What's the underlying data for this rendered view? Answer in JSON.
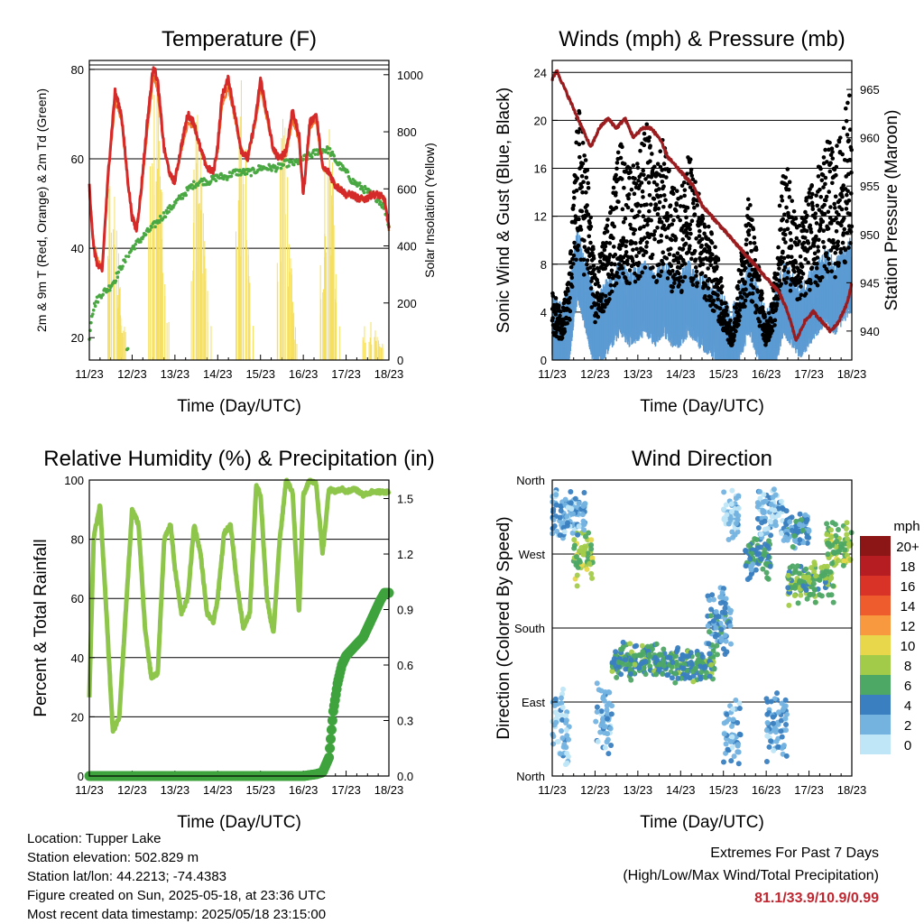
{
  "x_ticks": [
    "11/23",
    "12/23",
    "13/23",
    "14/23",
    "15/23",
    "16/23",
    "17/23",
    "18/23"
  ],
  "x_label": "Time (Day/UTC)",
  "footer": {
    "location": "Location: Tupper Lake",
    "elevation": "Station elevation: 502.829 m",
    "latlon": "Station lat/lon: 44.2213; -74.4383",
    "created": "Figure created on Sun, 2025-05-18, at 23:36 UTC",
    "recent": "Most recent data timestamp: 2025/05/18 23:15:00",
    "extremes_title": "Extremes For Past 7 Days",
    "extremes_sub": "(High/Low/Max Wind/Total Precipitation)",
    "extremes_values": "81.1/33.9/10.9/0.99"
  },
  "colorbar": {
    "title": "mph",
    "labels": [
      "20+",
      "18",
      "16",
      "14",
      "12",
      "10",
      "8",
      "6",
      "4",
      "2",
      "0"
    ],
    "colors": [
      "#8c1515",
      "#b61d22",
      "#d93327",
      "#ee5b2c",
      "#f89940",
      "#e8d74a",
      "#a3cb4a",
      "#4ea865",
      "#3a7fc0",
      "#74b3e0",
      "#bfe6f7"
    ]
  },
  "chart_data": [
    {
      "id": "temperature",
      "type": "line",
      "title": "Temperature (F)",
      "xlabel": "Time (Day/UTC)",
      "ylabel": "2m & 9m T (Red, Orange) & 2m Td (Green)",
      "ylabel_right": "Solar Insolation (Yellow)",
      "xlim": [
        11,
        18
      ],
      "ylim": [
        15,
        82
      ],
      "yticks": [
        20,
        40,
        60,
        80
      ],
      "ylim_right": [
        0,
        1050
      ],
      "yticks_right": [
        0,
        200,
        400,
        600,
        800,
        1000
      ],
      "gridlines": [
        40,
        60,
        80
      ],
      "colors": {
        "t2m": "#d42a2a",
        "t9m": "#f0772e",
        "td": "#4aa843",
        "solar": "#f6df5c"
      },
      "series": [
        {
          "key": "t2m",
          "x": [
            11.0,
            11.1,
            11.2,
            11.3,
            11.45,
            11.6,
            11.75,
            11.9,
            12.0,
            12.1,
            12.2,
            12.35,
            12.5,
            12.6,
            12.75,
            12.9,
            13.0,
            13.15,
            13.3,
            13.45,
            13.6,
            13.75,
            13.9,
            14.0,
            14.1,
            14.25,
            14.4,
            14.55,
            14.7,
            14.9,
            15.0,
            15.15,
            15.3,
            15.45,
            15.6,
            15.75,
            15.9,
            16.0,
            16.15,
            16.3,
            16.45,
            16.6,
            16.75,
            16.9,
            17.0,
            17.15,
            17.3,
            17.45,
            17.6,
            17.75,
            17.9,
            18.0
          ],
          "y": [
            54,
            40,
            36,
            35,
            58,
            75,
            70,
            55,
            47,
            44,
            52,
            68,
            81,
            77,
            62,
            56,
            55,
            63,
            70,
            68,
            62,
            58,
            57,
            63,
            74,
            78,
            70,
            62,
            60,
            70,
            78,
            70,
            62,
            60,
            62,
            71,
            65,
            52,
            68,
            70,
            58,
            57,
            54,
            53,
            52,
            52,
            51,
            51,
            52,
            52,
            51,
            44
          ]
        },
        {
          "key": "t9m",
          "x": [
            11.0,
            11.1,
            11.2,
            11.3,
            11.45,
            11.6,
            11.75,
            11.9,
            12.0,
            12.1,
            12.2,
            12.35,
            12.5,
            12.6,
            12.75,
            12.9,
            13.0,
            13.15,
            13.3,
            13.45,
            13.6,
            13.75,
            13.9,
            14.0,
            14.1,
            14.25,
            14.4,
            14.55,
            14.7,
            14.9,
            15.0,
            15.15,
            15.3,
            15.45,
            15.6,
            15.75,
            15.9,
            16.0,
            16.15,
            16.3,
            16.45,
            16.6,
            16.75,
            16.9,
            17.0,
            17.15,
            17.3,
            17.45,
            17.6,
            17.75,
            17.9,
            18.0
          ],
          "y": [
            53,
            41,
            37,
            36,
            57,
            73,
            69,
            55,
            47,
            45,
            51,
            66,
            79,
            75,
            62,
            56,
            55,
            62,
            68,
            67,
            62,
            58,
            57,
            62,
            72,
            76,
            69,
            62,
            60,
            69,
            76,
            69,
            62,
            60,
            61,
            69,
            64,
            52,
            67,
            69,
            58,
            57,
            54,
            53,
            52,
            52,
            51,
            51,
            52,
            52,
            51,
            44
          ]
        },
        {
          "key": "td",
          "x": [
            11.0,
            11.05,
            11.15,
            11.3,
            11.45,
            11.6,
            11.75,
            11.9,
            12.0,
            12.2,
            12.4,
            12.6,
            12.8,
            13.0,
            13.2,
            13.4,
            13.6,
            13.8,
            14.0,
            14.2,
            14.4,
            14.6,
            14.8,
            15.0,
            15.2,
            15.4,
            15.6,
            15.8,
            16.0,
            16.2,
            16.4,
            16.6,
            16.8,
            17.0,
            17.15,
            17.3,
            17.45,
            17.6,
            17.75,
            17.9,
            18.0
          ],
          "y": [
            20,
            25,
            28,
            30,
            31,
            33,
            36,
            38,
            40,
            42,
            44,
            46,
            48,
            50,
            52,
            54,
            55,
            55,
            56,
            56,
            57,
            57,
            57,
            58,
            58,
            58,
            59,
            59,
            60,
            61,
            62,
            62,
            59,
            57,
            55,
            54,
            53,
            52,
            51,
            49,
            45
          ]
        },
        {
          "key": "solar",
          "x": [
            11.4,
            11.5,
            11.6,
            11.7,
            11.8,
            12.4,
            12.5,
            12.6,
            12.7,
            12.8,
            13.4,
            13.5,
            13.6,
            13.7,
            13.8,
            14.4,
            14.5,
            14.6,
            14.7,
            14.8,
            15.4,
            15.5,
            15.6,
            15.7,
            15.8,
            16.4,
            16.5,
            16.6,
            16.7,
            16.8,
            17.4,
            17.5,
            17.6,
            17.7,
            17.8
          ],
          "y": [
            400,
            700,
            550,
            300,
            100,
            550,
            990,
            880,
            600,
            150,
            450,
            900,
            750,
            380,
            120,
            300,
            850,
            950,
            500,
            100,
            400,
            800,
            760,
            350,
            120,
            300,
            700,
            950,
            600,
            140,
            80,
            180,
            120,
            90,
            60
          ]
        }
      ]
    },
    {
      "id": "winds",
      "type": "scatter",
      "title": "Winds (mph) & Pressure (mb)",
      "xlabel": "Time (Day/UTC)",
      "ylabel": "Sonic Wind & Gust (Blue, Black)",
      "ylabel_right": "Station Pressure (Maroon)",
      "xlim": [
        11,
        18
      ],
      "ylim": [
        0,
        25
      ],
      "yticks": [
        0,
        4,
        8,
        12,
        16,
        20,
        24
      ],
      "ylim_right": [
        937,
        968
      ],
      "yticks_right": [
        940,
        945,
        950,
        955,
        960,
        965
      ],
      "gridlines": [
        4,
        8,
        12,
        16,
        20,
        24
      ],
      "colors": {
        "wind": "#5c9bd3",
        "gust": "#000000",
        "pressure": "#9b1c1f"
      },
      "series": [
        {
          "key": "wind_mean",
          "x": [
            11.0,
            11.2,
            11.4,
            11.6,
            11.8,
            12.0,
            12.2,
            12.4,
            12.6,
            12.8,
            13.0,
            13.2,
            13.4,
            13.6,
            13.8,
            14.0,
            14.2,
            14.4,
            14.6,
            14.8,
            15.0,
            15.2,
            15.4,
            15.6,
            15.8,
            16.0,
            16.2,
            16.4,
            16.6,
            16.8,
            17.0,
            17.2,
            17.4,
            17.6,
            17.8,
            18.0
          ],
          "y": [
            2,
            1.5,
            3,
            8,
            5,
            2,
            3,
            4,
            5,
            4,
            4.5,
            5,
            4,
            5,
            4,
            4,
            5,
            4,
            3.5,
            3,
            2,
            1,
            3,
            5,
            3,
            1,
            2,
            5,
            4,
            3,
            4,
            5,
            6,
            5,
            6,
            7
          ]
        },
        {
          "key": "gust_mean",
          "x": [
            11.0,
            11.2,
            11.4,
            11.6,
            11.8,
            12.0,
            12.2,
            12.4,
            12.6,
            12.8,
            13.0,
            13.2,
            13.4,
            13.6,
            13.8,
            14.0,
            14.2,
            14.4,
            14.6,
            14.8,
            15.0,
            15.2,
            15.4,
            15.6,
            15.8,
            16.0,
            16.2,
            16.4,
            16.6,
            16.8,
            17.0,
            17.2,
            17.4,
            17.6,
            17.8,
            18.0
          ],
          "y": [
            4,
            3,
            5,
            15,
            12,
            5,
            7,
            10,
            13,
            11,
            12,
            14,
            11,
            13,
            10,
            10,
            12,
            10,
            8,
            7,
            4,
            2,
            6,
            10,
            6,
            2,
            5,
            12,
            10,
            8,
            10,
            11,
            13,
            12,
            14,
            16
          ]
        },
        {
          "key": "pressure",
          "x": [
            11.0,
            11.1,
            11.3,
            11.5,
            11.7,
            11.9,
            12.1,
            12.3,
            12.5,
            12.7,
            12.9,
            13.1,
            13.3,
            13.5,
            13.7,
            13.9,
            14.1,
            14.3,
            14.5,
            14.7,
            14.9,
            15.1,
            15.3,
            15.5,
            15.7,
            15.9,
            16.1,
            16.3,
            16.5,
            16.7,
            16.9,
            17.1,
            17.3,
            17.5,
            17.7,
            17.9,
            18.0
          ],
          "y": [
            966,
            967,
            965,
            963,
            961,
            959,
            961,
            962,
            961,
            962,
            960,
            961,
            961,
            960,
            958,
            957,
            956,
            955,
            953,
            952,
            951,
            950,
            949,
            948,
            947,
            946,
            945,
            944,
            942,
            939,
            941,
            942,
            941,
            940,
            941,
            943,
            945
          ]
        }
      ]
    },
    {
      "id": "humidity",
      "type": "line",
      "title": "Relative Humidity (%) & Precipitation (in)",
      "xlabel": "Time (Day/UTC)",
      "ylabel": "Percent & Total Rainfall",
      "xlim": [
        11,
        18
      ],
      "ylim": [
        0,
        100
      ],
      "yticks": [
        0,
        20,
        40,
        60,
        80,
        100
      ],
      "ylim_right": [
        0,
        1.6
      ],
      "yticks_right": [
        "0.0",
        "0.3",
        "0.6",
        "0.9",
        "1.2",
        "1.5"
      ],
      "gridlines": [
        20,
        40,
        60,
        80,
        100
      ],
      "colors": {
        "rh": "#8ec64b",
        "precip": "#3fa33d"
      },
      "series": [
        {
          "key": "rh",
          "x": [
            11.0,
            11.1,
            11.25,
            11.4,
            11.55,
            11.7,
            11.85,
            12.0,
            12.15,
            12.3,
            12.45,
            12.6,
            12.75,
            12.9,
            13.0,
            13.15,
            13.3,
            13.45,
            13.6,
            13.75,
            13.9,
            14.0,
            14.15,
            14.3,
            14.45,
            14.6,
            14.75,
            14.9,
            15.0,
            15.15,
            15.3,
            15.45,
            15.6,
            15.75,
            15.9,
            16.0,
            16.15,
            16.3,
            16.45,
            16.6,
            16.75,
            16.9,
            17.0,
            17.2,
            17.4,
            17.6,
            17.8,
            18.0
          ],
          "y": [
            27,
            80,
            92,
            55,
            15,
            20,
            55,
            90,
            85,
            50,
            33,
            35,
            80,
            85,
            70,
            55,
            60,
            85,
            75,
            55,
            52,
            60,
            82,
            85,
            65,
            50,
            55,
            98,
            95,
            60,
            48,
            80,
            100,
            96,
            55,
            95,
            100,
            99,
            75,
            97,
            96,
            97,
            96,
            97,
            95,
            96,
            96,
            96
          ]
        },
        {
          "key": "precip",
          "x": [
            11.0,
            11.5,
            12.0,
            12.5,
            13.0,
            13.5,
            14.0,
            14.5,
            15.0,
            15.5,
            16.0,
            16.3,
            16.45,
            16.6,
            16.7,
            16.8,
            16.9,
            17.0,
            17.2,
            17.4,
            17.6,
            17.8,
            17.9,
            18.0
          ],
          "y": [
            0,
            0,
            0,
            0,
            0,
            0,
            0,
            0,
            0,
            0,
            0,
            0.01,
            0.02,
            0.1,
            0.35,
            0.5,
            0.6,
            0.65,
            0.7,
            0.75,
            0.85,
            0.95,
            0.99,
            0.99
          ]
        }
      ]
    },
    {
      "id": "wind_direction",
      "type": "scatter",
      "title": "Wind Direction",
      "xlabel": "Time (Day/UTC)",
      "ylabel": "Direction (Colored By Speed)",
      "xlim": [
        11,
        18
      ],
      "ylim": [
        0,
        360
      ],
      "ytick_labels": [
        "North",
        "East",
        "South",
        "West",
        "North"
      ],
      "yticks": [
        0,
        90,
        180,
        270,
        360
      ],
      "gridlines": [
        90,
        180,
        270
      ],
      "clusters": [
        {
          "x0": 11.0,
          "x1": 11.3,
          "dir_mean": 315,
          "dir_spread": 35,
          "speed": 2
        },
        {
          "x0": 11.0,
          "x1": 11.4,
          "dir_mean": 60,
          "dir_spread": 55,
          "speed": 1
        },
        {
          "x0": 11.5,
          "x1": 11.95,
          "dir_mean": 270,
          "dir_spread": 40,
          "speed": 7
        },
        {
          "x0": 11.3,
          "x1": 11.8,
          "dir_mean": 320,
          "dir_spread": 30,
          "speed": 2
        },
        {
          "x0": 12.0,
          "x1": 12.4,
          "dir_mean": 70,
          "dir_spread": 50,
          "speed": 2
        },
        {
          "x0": 12.4,
          "x1": 13.5,
          "dir_mean": 140,
          "dir_spread": 25,
          "speed": 5
        },
        {
          "x0": 13.5,
          "x1": 14.8,
          "dir_mean": 135,
          "dir_spread": 25,
          "speed": 5
        },
        {
          "x0": 14.6,
          "x1": 15.2,
          "dir_mean": 190,
          "dir_spread": 45,
          "speed": 3
        },
        {
          "x0": 15.0,
          "x1": 15.4,
          "dir_mean": 320,
          "dir_spread": 35,
          "speed": 1
        },
        {
          "x0": 15.0,
          "x1": 15.4,
          "dir_mean": 50,
          "dir_spread": 45,
          "speed": 2
        },
        {
          "x0": 15.5,
          "x1": 16.1,
          "dir_mean": 270,
          "dir_spread": 40,
          "speed": 4
        },
        {
          "x0": 15.8,
          "x1": 16.4,
          "dir_mean": 320,
          "dir_spread": 30,
          "speed": 1
        },
        {
          "x0": 16.0,
          "x1": 16.5,
          "dir_mean": 60,
          "dir_spread": 45,
          "speed": 2
        },
        {
          "x0": 16.5,
          "x1": 17.6,
          "dir_mean": 235,
          "dir_spread": 30,
          "speed": 6
        },
        {
          "x0": 16.4,
          "x1": 17.0,
          "dir_mean": 300,
          "dir_spread": 25,
          "speed": 3
        },
        {
          "x0": 17.4,
          "x1": 18.0,
          "dir_mean": 280,
          "dir_spread": 30,
          "speed": 7
        }
      ]
    }
  ]
}
